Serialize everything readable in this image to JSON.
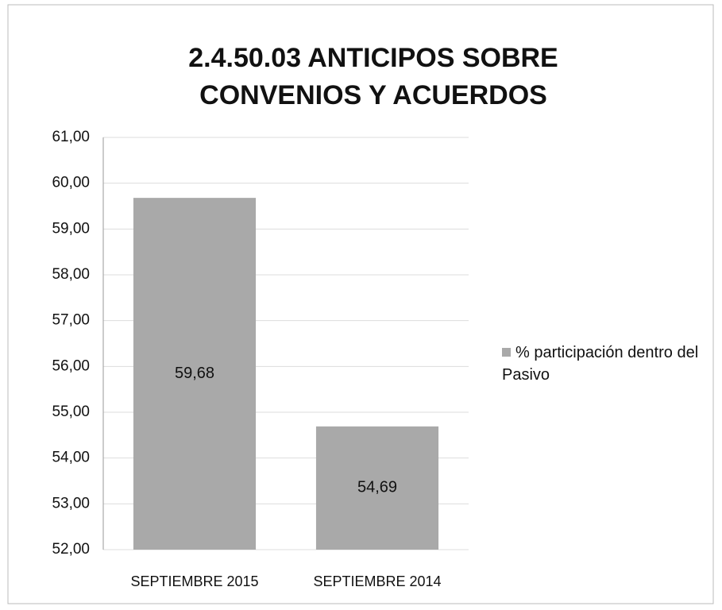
{
  "chart_data": {
    "type": "bar",
    "title": [
      "2.4.50.03  ANTICIPOS SOBRE",
      "CONVENIOS Y ACUERDOS"
    ],
    "categories": [
      "SEPTIEMBRE 2015",
      "SEPTIEMBRE 2014"
    ],
    "series": [
      {
        "name": "% participación dentro del Pasivo",
        "color": "#a9a9a9",
        "values": [
          59.68,
          54.69
        ],
        "value_labels": [
          "59,68",
          "54,69"
        ]
      }
    ],
    "ylim": [
      52,
      61
    ],
    "yticks": [
      {
        "value": 52,
        "label": "52,00"
      },
      {
        "value": 53,
        "label": "53,00"
      },
      {
        "value": 54,
        "label": "54,00"
      },
      {
        "value": 55,
        "label": "55,00"
      },
      {
        "value": 56,
        "label": "56,00"
      },
      {
        "value": 57,
        "label": "57,00"
      },
      {
        "value": 58,
        "label": "58,00"
      },
      {
        "value": 59,
        "label": "59,00"
      },
      {
        "value": 60,
        "label": "60,00"
      },
      {
        "value": 61,
        "label": "61,00"
      }
    ],
    "grid": true,
    "legend": "right"
  }
}
